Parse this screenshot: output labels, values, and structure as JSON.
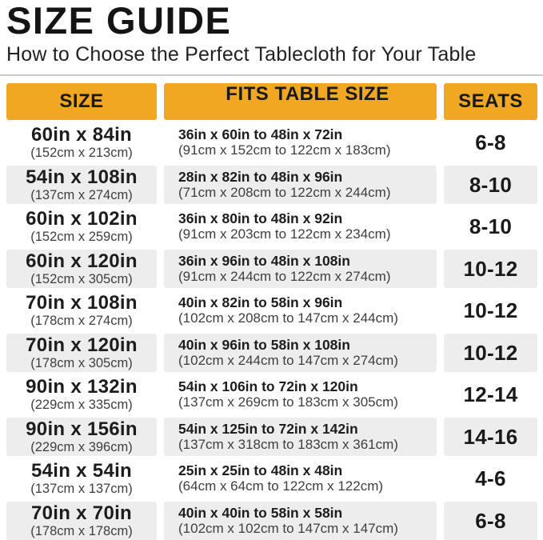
{
  "header": {
    "title": "SIZE GUIDE",
    "subtitle": "How to Choose the Perfect Tablecloth for Your Table"
  },
  "colors": {
    "accent": "#f0a822",
    "row_alt": "#ededed",
    "divider": "#c9c9c9"
  },
  "table": {
    "columns": [
      "SIZE",
      "FITS TABLE SIZE",
      "SEATS"
    ],
    "rows": [
      {
        "size_in": "60in x 84in",
        "size_cm": "(152cm x 213cm)",
        "fits_in": "36in x 60in to 48in x 72in",
        "fits_cm": "(91cm x 152cm to 122cm x 183cm)",
        "seats": "6-8"
      },
      {
        "size_in": "54in x 108in",
        "size_cm": "(137cm x 274cm)",
        "fits_in": "28in x 82in to 48in x 96in",
        "fits_cm": "(71cm x 208cm to 122cm x 244cm)",
        "seats": "8-10"
      },
      {
        "size_in": "60in x 102in",
        "size_cm": "(152cm x 259cm)",
        "fits_in": "36in x 80in to 48in x 92in",
        "fits_cm": "(91cm x 203cm to 122cm x 234cm)",
        "seats": "8-10"
      },
      {
        "size_in": "60in x 120in",
        "size_cm": "(152cm x 305cm)",
        "fits_in": "36in x 96in to 48in x 108in",
        "fits_cm": "(91cm x 244cm to 122cm x 274cm)",
        "seats": "10-12"
      },
      {
        "size_in": "70in x 108in",
        "size_cm": "(178cm x 274cm)",
        "fits_in": "40in x 82in to 58in x 96in",
        "fits_cm": "(102cm x 208cm to 147cm x 244cm)",
        "seats": "10-12"
      },
      {
        "size_in": "70in x 120in",
        "size_cm": "(178cm x 305cm)",
        "fits_in": "40in x 96in to 58in x 108in",
        "fits_cm": "(102cm x 244cm to 147cm x 274cm)",
        "seats": "10-12"
      },
      {
        "size_in": "90in x 132in",
        "size_cm": "(229cm x 335cm)",
        "fits_in": "54in x 106in to 72in x 120in",
        "fits_cm": "(137cm x 269cm to 183cm x 305cm)",
        "seats": "12-14"
      },
      {
        "size_in": "90in x 156in",
        "size_cm": "(229cm x 396cm)",
        "fits_in": "54in x 125in to 72in x 142in",
        "fits_cm": "(137cm x 318cm to 183cm x 361cm)",
        "seats": "14-16"
      },
      {
        "size_in": "54in x 54in",
        "size_cm": "(137cm x 137cm)",
        "fits_in": "25in x 25in to 48in x 48in",
        "fits_cm": "(64cm x 64cm to 122cm x 122cm)",
        "seats": "4-6"
      },
      {
        "size_in": "70in x 70in",
        "size_cm": "(178cm x 178cm)",
        "fits_in": "40in x 40in to 58in x 58in",
        "fits_cm": "(102cm x 102cm to 147cm x 147cm)",
        "seats": "6-8"
      }
    ]
  }
}
